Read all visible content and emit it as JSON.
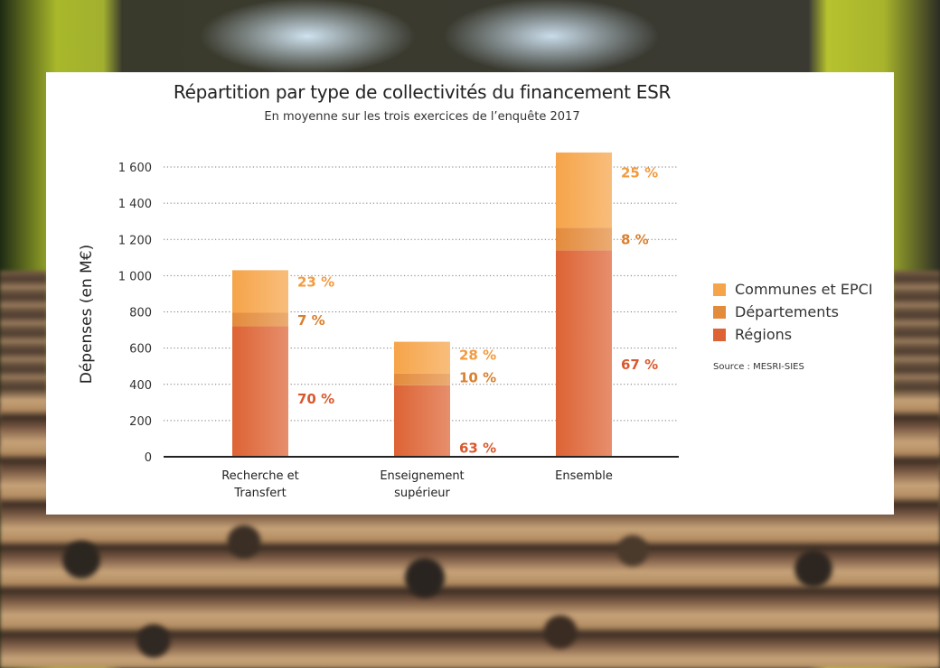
{
  "chart_data": {
    "type": "bar",
    "stacked": true,
    "title": "Répartition par type de collectivités du financement ESR",
    "subtitle": "En moyenne sur les trois exercices de l’enquête 2017",
    "ylabel": "Dépenses (en M€)",
    "xlabel": "",
    "ylim": [
      0,
      1600
    ],
    "yticks": [
      0,
      200,
      400,
      600,
      800,
      1000,
      1200,
      1400,
      1600
    ],
    "ytick_labels": [
      "0",
      "200",
      "400",
      "600",
      "800",
      "1 000",
      "1 200",
      "1 400",
      "1 600"
    ],
    "grid": "horizontal-dotted",
    "legend_position": "right",
    "categories": [
      [
        "Recherche et",
        "Transfert"
      ],
      [
        "Enseignement",
        "supérieur"
      ],
      [
        "Ensemble"
      ]
    ],
    "series": [
      {
        "name": "Régions",
        "color": "#dd6334",
        "values": [
          720,
          395,
          1140
        ],
        "labels": [
          "70 %",
          "63 %",
          "67 %"
        ]
      },
      {
        "name": "Départements",
        "color": "#e38b3c",
        "values": [
          75,
          65,
          125
        ],
        "labels": [
          "7 %",
          "10 %",
          "8 %"
        ]
      },
      {
        "name": "Communes et EPCI",
        "color": "#f6a449",
        "values": [
          235,
          175,
          415
        ],
        "labels": [
          "23 %",
          "28 %",
          "25 %"
        ]
      }
    ],
    "source": "Source : MESRI-SIES"
  },
  "legend_order": [
    "Communes et EPCI",
    "Départements",
    "Régions"
  ]
}
